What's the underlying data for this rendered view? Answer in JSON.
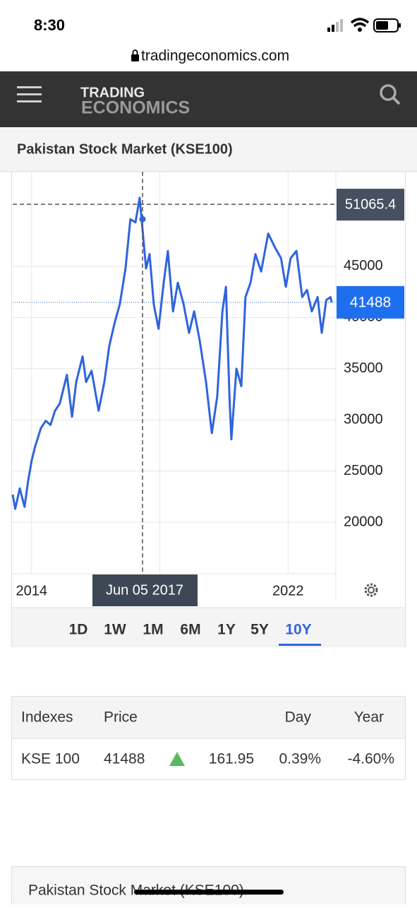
{
  "status_bar": {
    "time": "8:30"
  },
  "url": "tradingeconomics.com",
  "header": {
    "logo_top": "TRADING",
    "logo_bottom": "ECONOMICS"
  },
  "chart_data": {
    "type": "line",
    "title": "Pakistan Stock Market (KSE100)",
    "color": "#2f64dc",
    "x": [
      2013.41,
      2013.49,
      2013.63,
      2013.78,
      2013.89,
      2014.0,
      2014.11,
      2014.29,
      2014.44,
      2014.59,
      2014.73,
      2014.88,
      2015.1,
      2015.26,
      2015.39,
      2015.59,
      2015.7,
      2015.87,
      2016.09,
      2016.27,
      2016.42,
      2016.6,
      2016.75,
      2016.93,
      2017.08,
      2017.24,
      2017.37,
      2017.57,
      2017.68,
      2017.81,
      2017.96,
      2018.12,
      2018.25,
      2018.41,
      2018.56,
      2018.74,
      2018.91,
      2019.07,
      2019.24,
      2019.44,
      2019.62,
      2019.79,
      2019.95,
      2020.06,
      2020.17,
      2020.23,
      2020.39,
      2020.54,
      2020.67,
      2020.83,
      2020.98,
      2021.16,
      2021.38,
      2021.6,
      2021.78,
      2021.93,
      2022.08,
      2022.26,
      2022.44,
      2022.59,
      2022.74,
      2022.92,
      2023.05,
      2023.19,
      2023.32,
      2023.36
    ],
    "values": [
      22700,
      21300,
      23300,
      21500,
      24000,
      26000,
      27400,
      29200,
      29900,
      29500,
      30900,
      31600,
      34400,
      30300,
      33700,
      36200,
      33700,
      34800,
      30900,
      33700,
      37200,
      39600,
      41300,
      44800,
      49600,
      49300,
      51700,
      44800,
      46200,
      41300,
      38900,
      43400,
      46500,
      40600,
      43400,
      41300,
      38500,
      40600,
      37800,
      33700,
      28700,
      32300,
      40600,
      43000,
      32300,
      28100,
      35000,
      33300,
      42000,
      43400,
      46200,
      44500,
      48200,
      46800,
      45800,
      43000,
      45800,
      46500,
      42000,
      42700,
      40600,
      42000,
      38500,
      41700,
      42000,
      41488
    ],
    "xlim": [
      2013.41,
      2023.49
    ],
    "ylim": [
      14960,
      54250
    ],
    "xticks": [
      2014,
      2018,
      2022
    ],
    "yticks": [
      20000,
      25000,
      30000,
      35000,
      40000,
      45000
    ],
    "grid": true,
    "cursor": {
      "label": "Jun 05 2017",
      "x": 2017.46,
      "value": 51065.4
    }
  },
  "range_buttons": {
    "options": [
      "1D",
      "1W",
      "1M",
      "6M",
      "1Y",
      "5Y",
      "10Y"
    ],
    "active": "10Y"
  },
  "table": {
    "headers": [
      "Indexes",
      "Price",
      "Day",
      "Year"
    ],
    "rows": [
      [
        "KSE 100",
        "41488",
        "161.95",
        "0.39%",
        "-4.60%"
      ]
    ]
  },
  "footer_title": "Pakistan Stock Market (KSE100)"
}
